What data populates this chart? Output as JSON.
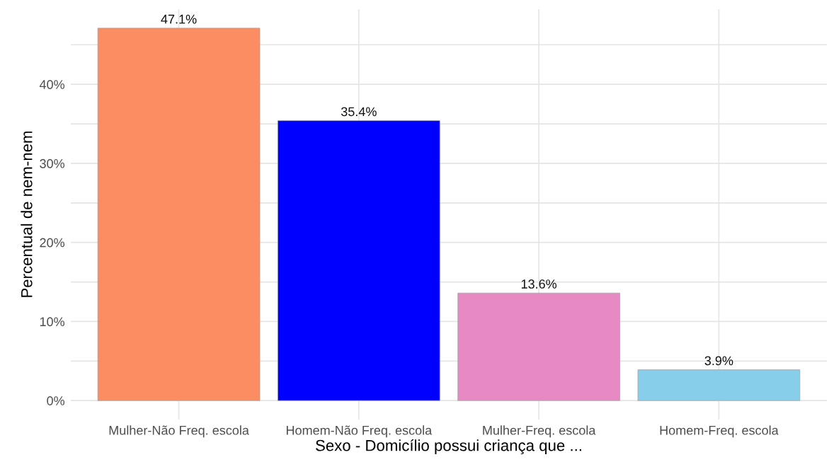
{
  "chart_data": {
    "type": "bar",
    "xlabel": "Sexo - Domicílio possui criança que ...",
    "ylabel": "Percentual de nem-nem",
    "categories": [
      "Mulher-Não Freq. escola",
      "Homem-Não Freq. escola",
      "Mulher-Freq. escola",
      "Homem-Freq. escola"
    ],
    "values": [
      47.1,
      35.4,
      13.6,
      3.9
    ],
    "colors": [
      "#fc8d62",
      "#0000ff",
      "#e78ac3",
      "#87ceeb"
    ],
    "value_labels": [
      "47.1%",
      "35.4%",
      "13.6%",
      "3.9%"
    ],
    "ylim": [
      -2.4,
      49.5
    ],
    "yticks": [
      {
        "value": 0,
        "label": "0%"
      },
      {
        "value": 5,
        "label": null
      },
      {
        "value": 10,
        "label": "10%"
      },
      {
        "value": 15,
        "label": null
      },
      {
        "value": 20,
        "label": "20%"
      },
      {
        "value": 25,
        "label": null
      },
      {
        "value": 30,
        "label": "30%"
      },
      {
        "value": 35,
        "label": null
      },
      {
        "value": 40,
        "label": "40%"
      },
      {
        "value": 45,
        "label": null
      }
    ],
    "grid": true
  }
}
